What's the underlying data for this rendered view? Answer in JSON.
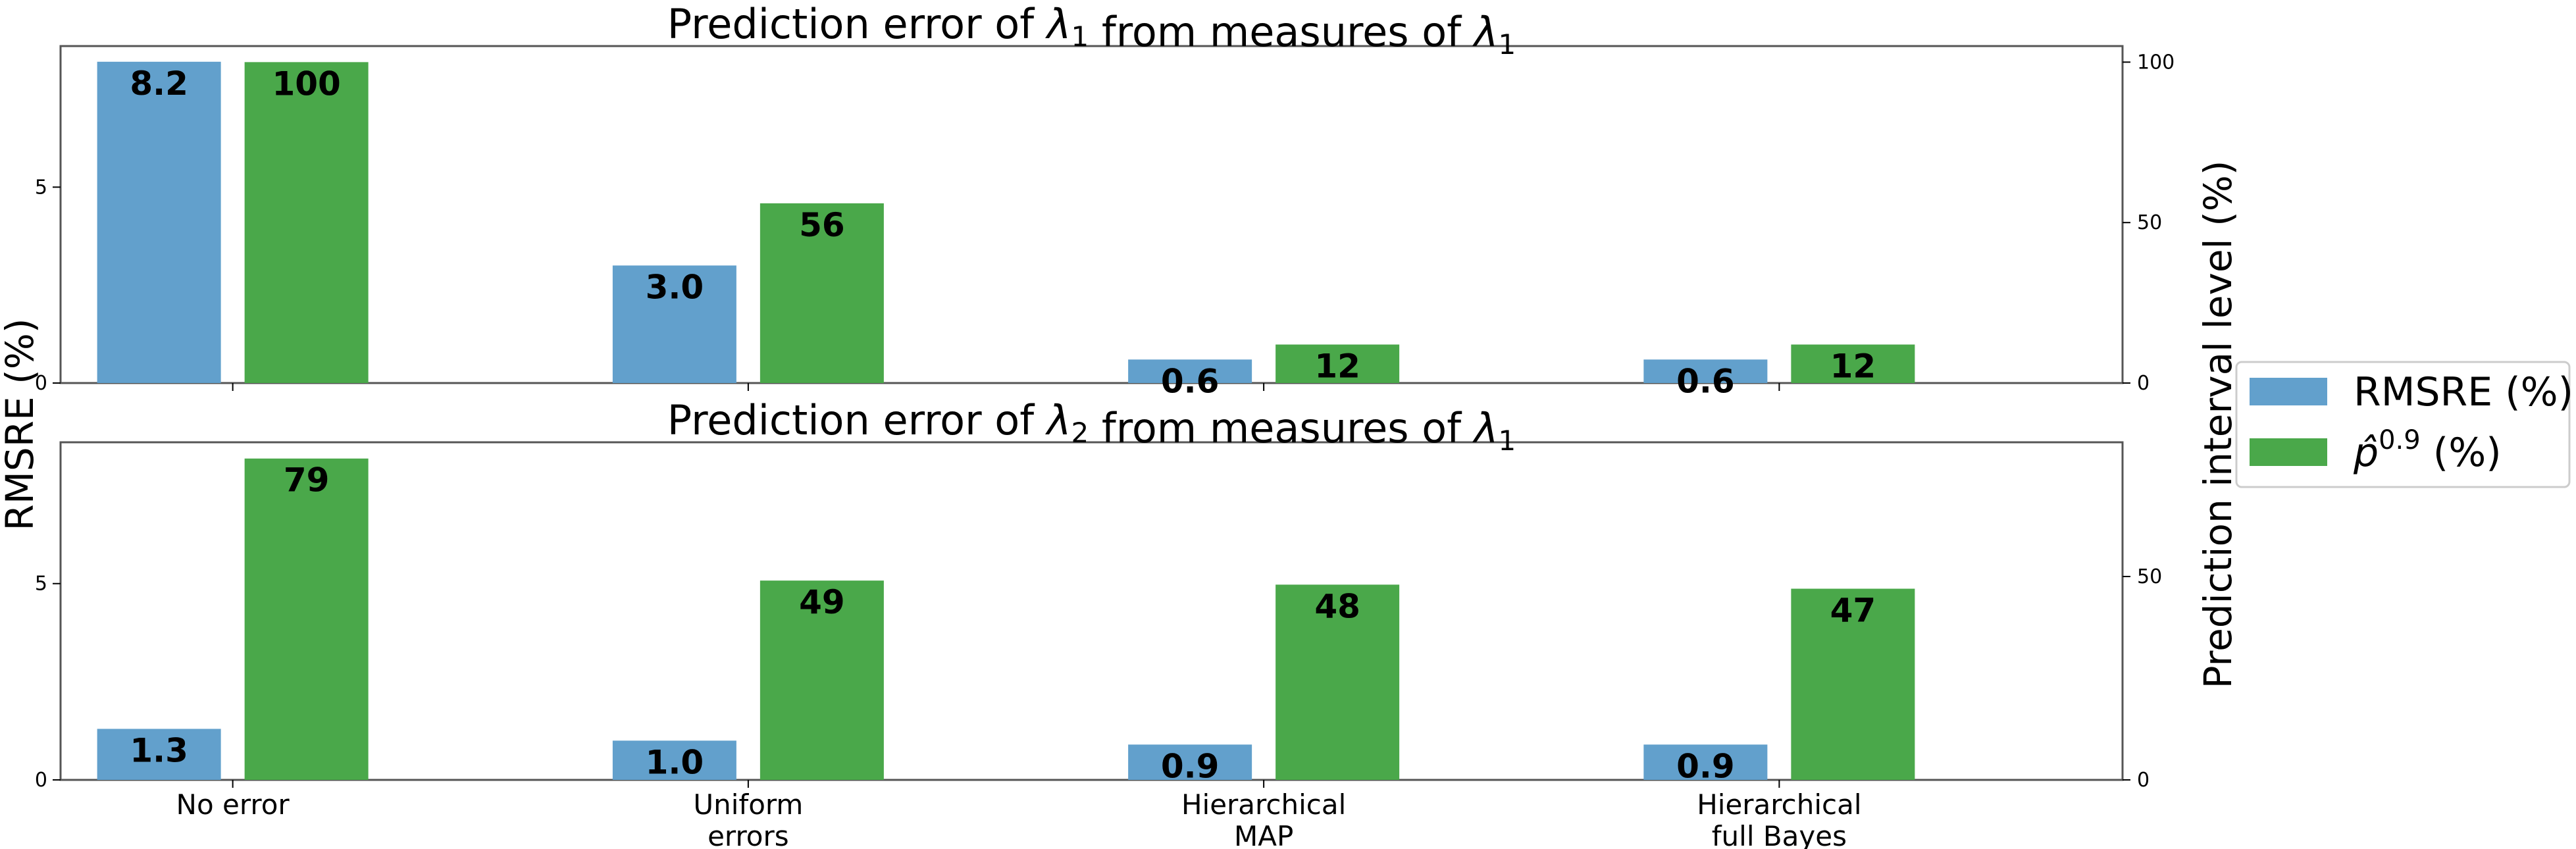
{
  "colors": {
    "rmsre": "#62a0cc",
    "p09": "#4aa84a",
    "axis": "#555555"
  },
  "shared": {
    "ylabel_left": "RMSRE (%)",
    "ylabel_right": "Prediction interval level (%)",
    "legend_placement": "center-right",
    "legend": [
      "RMSRE (%)",
      "p̂^0.9 (%)"
    ]
  },
  "chart_data": [
    {
      "type": "bar",
      "title": "Prediction error of λ1 from measures of λ1",
      "categories": [
        "No error",
        "Uniform errors",
        "Hierarchical MAP",
        "Hierarchical full Bayes"
      ],
      "series": [
        {
          "name": "RMSRE (%)",
          "axis": "left",
          "values": [
            8.2,
            3.0,
            0.6,
            0.6
          ],
          "labels": [
            "8.2",
            "3.0",
            "0.6",
            "0.6"
          ]
        },
        {
          "name": "p̂^0.9 (%)",
          "axis": "right",
          "values": [
            100,
            56,
            12,
            12
          ],
          "labels": [
            "100",
            "56",
            "12",
            "12"
          ]
        }
      ],
      "ylim_left": [
        0,
        8.6
      ],
      "yticks_left": [
        "0",
        "5"
      ],
      "ylim_right": [
        0,
        105
      ],
      "yticks_right": [
        "0",
        "50",
        "100"
      ],
      "grid": false
    },
    {
      "type": "bar",
      "title": "Prediction error of λ2 from measures of λ1",
      "categories": [
        "No error",
        "Uniform errors",
        "Hierarchical MAP",
        "Hierarchical full Bayes"
      ],
      "x_tick_labels": [
        [
          "No error"
        ],
        [
          "Uniform",
          "errors"
        ],
        [
          "Hierarchical",
          "MAP"
        ],
        [
          "Hierarchical",
          "full Bayes"
        ]
      ],
      "series": [
        {
          "name": "RMSRE (%)",
          "axis": "left",
          "values": [
            1.3,
            1.0,
            0.9,
            0.9
          ],
          "labels": [
            "1.3",
            "1.0",
            "0.9",
            "0.9"
          ]
        },
        {
          "name": "p̂^0.9 (%)",
          "axis": "right",
          "values": [
            79,
            49,
            48,
            47
          ],
          "labels": [
            "79",
            "49",
            "48",
            "47"
          ]
        }
      ],
      "ylim_left": [
        0,
        8.6
      ],
      "yticks_left": [
        "0",
        "5"
      ],
      "ylim_right": [
        0,
        83
      ],
      "yticks_right": [
        "0",
        "50"
      ],
      "grid": false
    }
  ]
}
